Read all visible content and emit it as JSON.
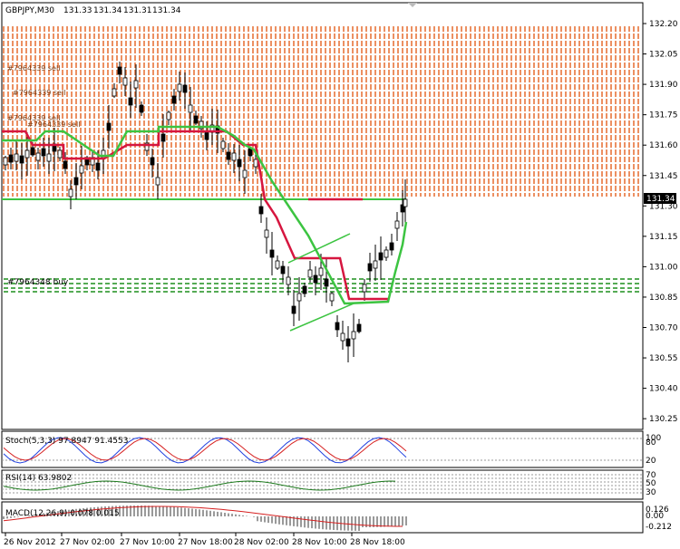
{
  "header": {
    "symbol": "GBPJPY,M30",
    "open": "131.33",
    "high": "131.34",
    "low": "131.31",
    "close": "131.34"
  },
  "main_chart": {
    "price_ticks": [
      "132.20",
      "132.05",
      "131.90",
      "131.75",
      "131.60",
      "131.45",
      "131.30",
      "131.15",
      "131.00",
      "130.85",
      "130.70",
      "130.55",
      "130.40",
      "130.25"
    ],
    "current_price_label": "131.34",
    "buy_order_label": "#7964348 buy",
    "sell_order_labels": [
      "#7964339 sell",
      "#7964339 sell",
      "#7964339 sell",
      "#7964339 sell"
    ],
    "colors": {
      "sell_zone": "#e8743b",
      "buy_zone": "#1d8f1d",
      "red_line": "#d6163f",
      "green_line": "#3cc441",
      "candles": "#000000"
    }
  },
  "indicators": {
    "stoch": {
      "label": "Stoch(5,3,3) 97.8947 91.4553",
      "ticks": [
        "100",
        "80",
        "20"
      ]
    },
    "rsi": {
      "label": "RSI(14) 63.9802",
      "ticks": [
        "70",
        "50",
        "30"
      ]
    },
    "macd": {
      "label": "MACD(12,26,9) 0.078 0.015",
      "ticks": [
        "0.126",
        "0.00",
        "-0.212"
      ]
    }
  },
  "time_axis": {
    "labels": [
      "26 Nov 2012",
      "27 Nov 02:00",
      "27 Nov 10:00",
      "27 Nov 18:00",
      "28 Nov 02:00",
      "28 Nov 10:00",
      "28 Nov 18:00"
    ]
  },
  "chart_data": {
    "type": "line",
    "title": "GBPJPY,M30",
    "ylim": [
      130.2,
      132.25
    ],
    "x": [
      "26 Nov 2012",
      "27 Nov 02:00",
      "27 Nov 10:00",
      "27 Nov 18:00",
      "28 Nov 02:00",
      "28 Nov 10:00",
      "28 Nov 18:00"
    ],
    "series": [
      {
        "name": "",
        "values": [
          131.55,
          131.45,
          131.85,
          131.65,
          131.05,
          130.6,
          131.34
        ]
      }
    ]
  }
}
